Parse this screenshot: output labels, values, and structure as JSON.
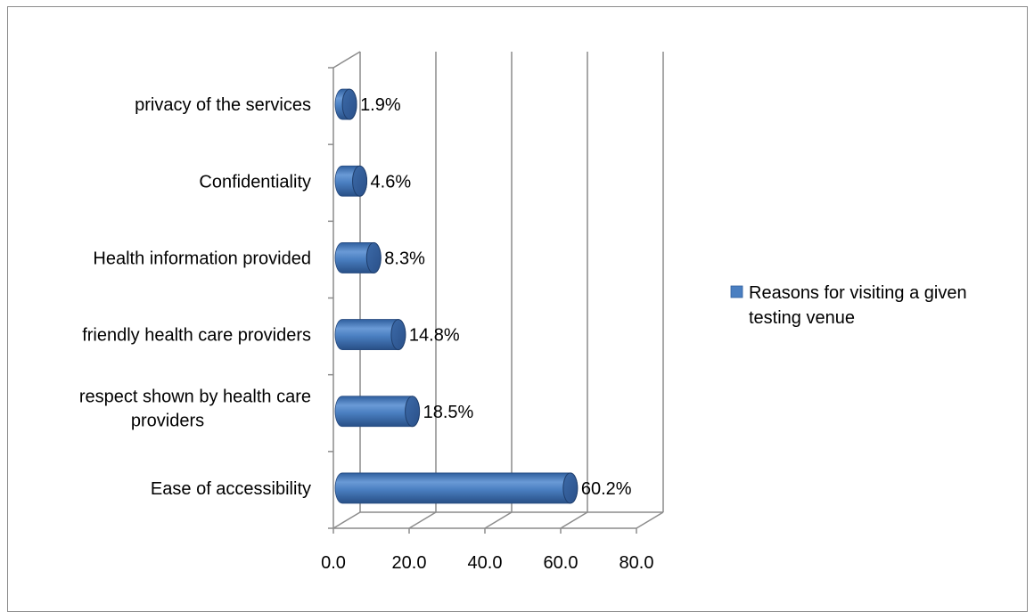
{
  "chart_data": {
    "type": "bar",
    "orientation": "horizontal",
    "style": "3d-cylinder",
    "categories": [
      "Ease of accessibility",
      "respect shown by health care providers",
      "friendly health care providers",
      "Health information provided",
      "Confidentiality",
      "privacy of the services"
    ],
    "category_lines": [
      [
        "Ease of accessibility"
      ],
      [
        "respect shown by health care",
        "providers"
      ],
      [
        "friendly health care providers"
      ],
      [
        "Health information provided"
      ],
      [
        "Confidentiality"
      ],
      [
        "privacy of the services"
      ]
    ],
    "series": [
      {
        "name": "Reasons for visiting a given testing venue",
        "name_lines": [
          "Reasons for visiting a given",
          "testing venue"
        ],
        "values": [
          60.2,
          18.5,
          14.8,
          8.3,
          4.6,
          1.9
        ],
        "data_labels": [
          "60.2%",
          "18.5%",
          "14.8%",
          "8.3%",
          "4.6%",
          "1.9%"
        ],
        "color": "#4a7fc1"
      }
    ],
    "xlim": [
      0,
      80
    ],
    "xticks": [
      0,
      20,
      40,
      60,
      80
    ],
    "xtick_labels": [
      "0.0",
      "20.0",
      "40.0",
      "60.0",
      "80.0"
    ],
    "title": "",
    "xlabel": "",
    "ylabel": "",
    "grid": true,
    "legend_position": "right"
  }
}
